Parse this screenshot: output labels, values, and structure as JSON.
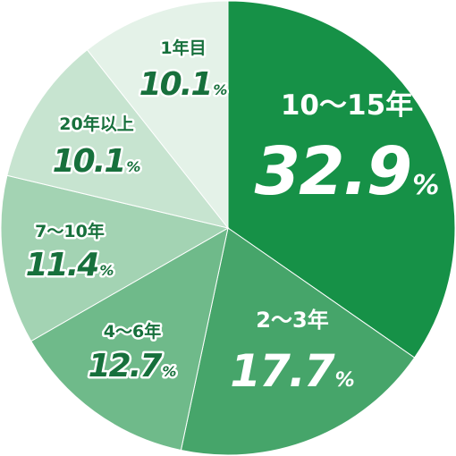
{
  "chart_data": {
    "type": "pie",
    "start_angle_deg": 0,
    "direction": "clockwise",
    "slices": [
      {
        "label": "10〜15年",
        "value": 32.9,
        "value_text": "32.9",
        "unit": "%",
        "color": "#169147",
        "text_color": "#ffffff"
      },
      {
        "label": "2〜3年",
        "value": 17.7,
        "value_text": "17.7",
        "unit": "%",
        "color": "#46a56a",
        "text_color": "#ffffff"
      },
      {
        "label": "4〜6年",
        "value": 12.7,
        "value_text": "12.7",
        "unit": "%",
        "color": "#6fba8a",
        "text_color": "#17703c"
      },
      {
        "label": "7〜10年",
        "value": 11.4,
        "value_text": "11.4",
        "unit": "%",
        "color": "#a3d3b3",
        "text_color": "#17703c"
      },
      {
        "label": "20年以上",
        "value": 10.1,
        "value_text": "10.1",
        "unit": "%",
        "color": "#c7e4d0",
        "text_color": "#17703c"
      },
      {
        "label": "1年目",
        "value": 10.1,
        "value_text": "10.1",
        "unit": "%",
        "color": "#e4f2e8",
        "text_color": "#17703c"
      }
    ]
  }
}
